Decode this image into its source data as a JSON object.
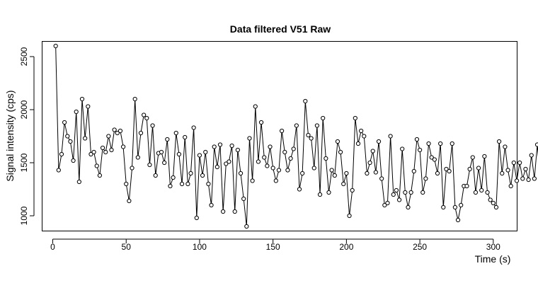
{
  "chart_data": {
    "type": "line",
    "title": "Data filtered V51 Raw",
    "xlabel": "Time (s)",
    "ylabel": "Signal intensity (cps)",
    "xlim": [
      -7,
      316
    ],
    "ylim": [
      860,
      2640
    ],
    "xticks": [
      0,
      50,
      100,
      150,
      200,
      250,
      300
    ],
    "yticks": [
      1000,
      1500,
      2000,
      2500
    ],
    "x_step": 2,
    "x_start": 2,
    "series": [
      {
        "style": "line+points",
        "values": [
          2600,
          1430,
          1580,
          1880,
          1750,
          1700,
          1520,
          1980,
          1320,
          2100,
          1730,
          2030,
          1580,
          1600,
          1470,
          1380,
          1640,
          1600,
          1750,
          1620,
          1810,
          1780,
          1800,
          1650,
          1300,
          1140,
          1450,
          2100,
          1550,
          1780,
          1950,
          1920,
          1480,
          1850,
          1380,
          1590,
          1600,
          1500,
          1720,
          1280,
          1360,
          1780,
          1580,
          1300,
          1740,
          1300,
          1400,
          1830,
          980,
          1570,
          1380,
          1600,
          1300,
          1100,
          1650,
          1460,
          1670,
          1040,
          1490,
          1510,
          1660,
          1040,
          1620,
          1400,
          1160,
          900,
          1730,
          1330,
          2030,
          1510,
          1880,
          1550,
          1470,
          1650,
          1450,
          1330,
          1430,
          1800,
          1600,
          1430,
          1540,
          1630,
          1850,
          1250,
          1400,
          2080,
          1760,
          1730,
          1450,
          1850,
          1200,
          1920,
          1540,
          1220,
          1430,
          1380,
          1700,
          1600,
          1300,
          1400,
          1000,
          1240,
          1920,
          1680,
          1800,
          1750,
          1400,
          1500,
          1610,
          1410,
          1700,
          1350,
          1100,
          1120,
          1750,
          1200,
          1240,
          1150,
          1630,
          1220,
          1080,
          1220,
          1420,
          1720,
          1620,
          1220,
          1350,
          1680,
          1550,
          1530,
          1400,
          1680,
          1080,
          1440,
          1420,
          1680,
          1080,
          960,
          1100,
          1280,
          1280,
          1440,
          1550,
          1220,
          1450,
          1240,
          1560,
          1220,
          1150,
          1120,
          1080,
          1700,
          1400,
          1650,
          1430,
          1280,
          1500,
          1330,
          1500,
          1350,
          1440,
          1340,
          1570,
          1350,
          1670,
          1330,
          1330,
          1720,
          1680,
          1120,
          1350,
          1480
        ]
      }
    ],
    "grid": false,
    "legend": "none"
  }
}
